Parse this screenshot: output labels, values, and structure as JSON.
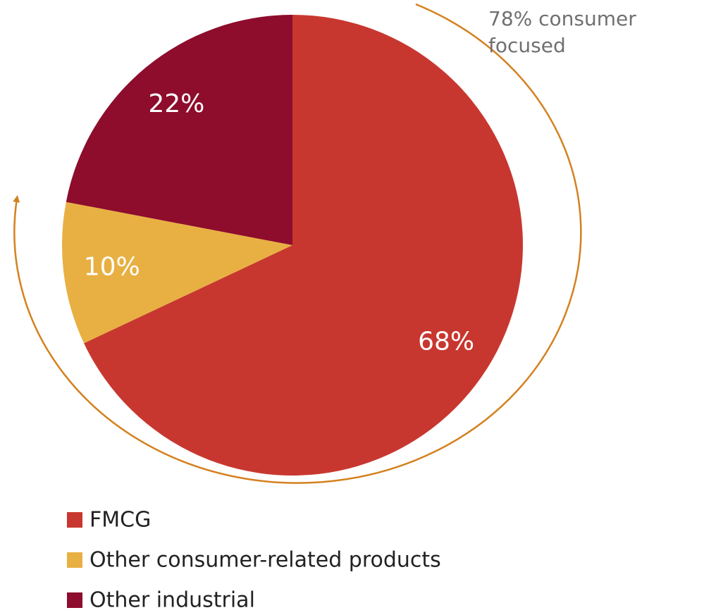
{
  "chart_data": {
    "type": "pie",
    "categories": [
      "FMCG",
      "Other consumer-related products",
      "Other industrial"
    ],
    "values": [
      68,
      10,
      22
    ],
    "value_labels": [
      "68%",
      "10%",
      "22%"
    ],
    "colors": [
      "#c8372f",
      "#e8b042",
      "#8e0c2c"
    ],
    "annotation": "78% consumer focused",
    "legend": "bottom-left"
  }
}
